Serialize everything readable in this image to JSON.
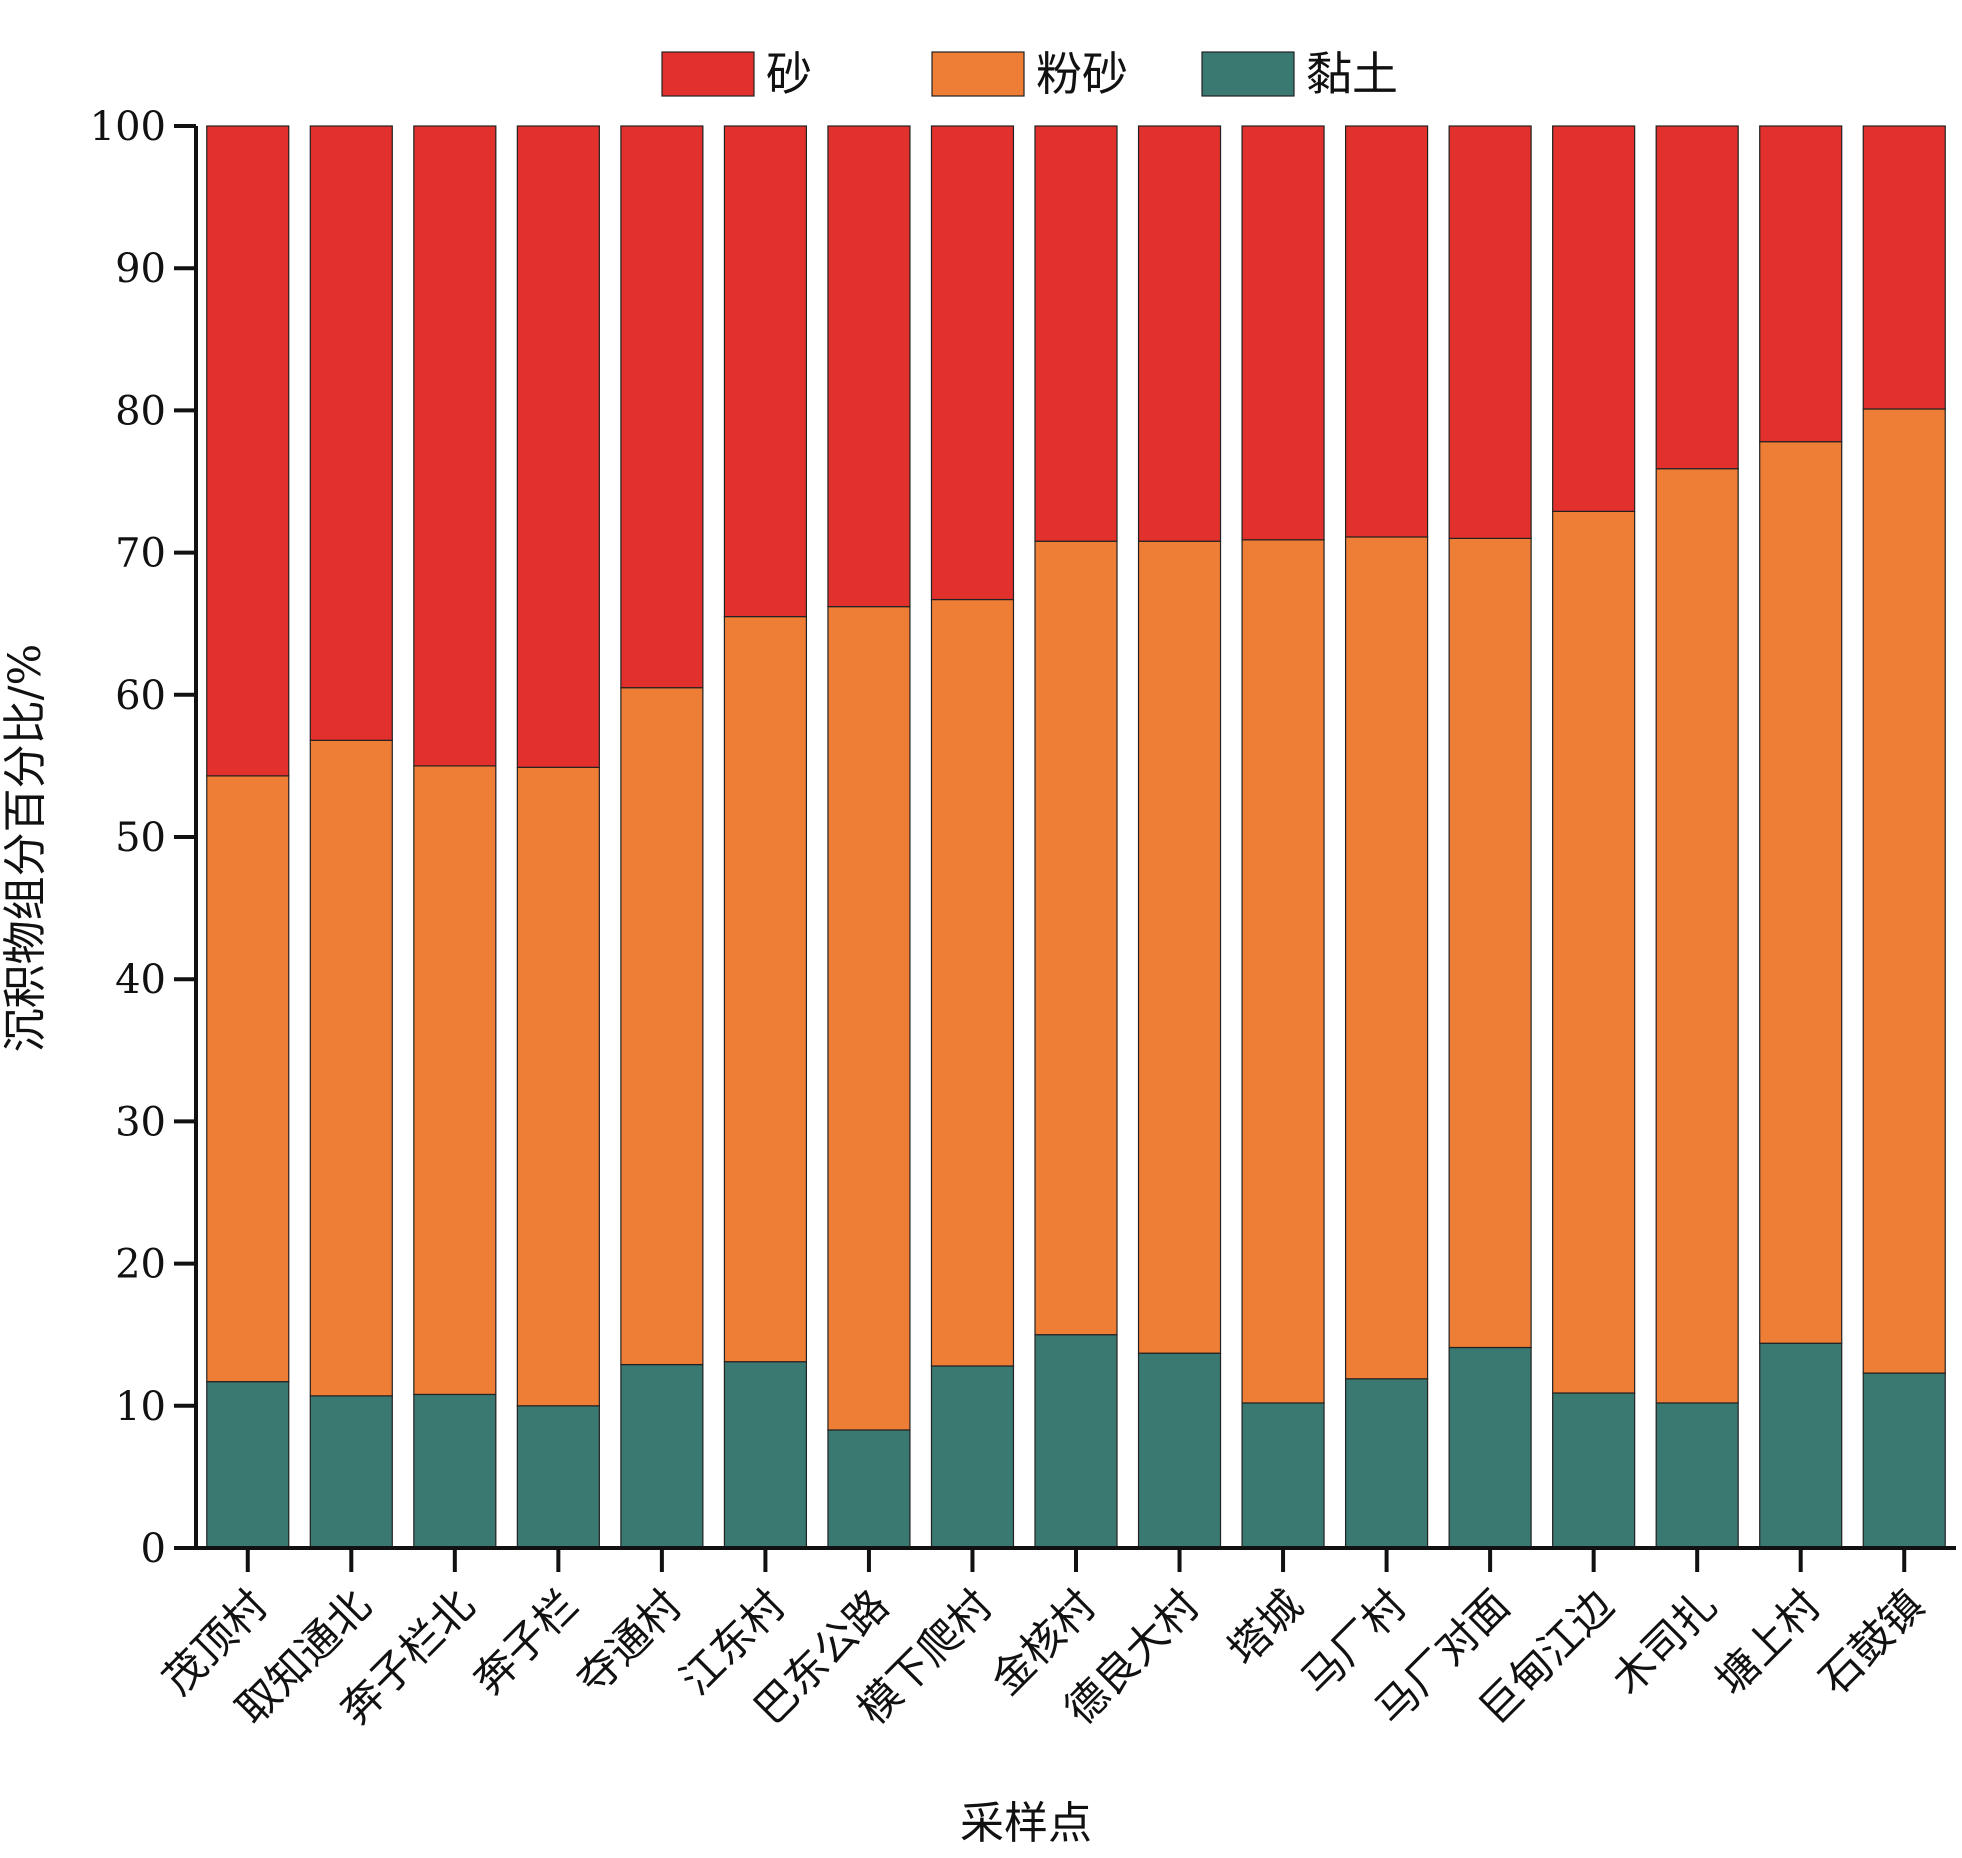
{
  "chart_data": {
    "type": "bar",
    "stacked": true,
    "title": "",
    "xlabel": "采样点",
    "ylabel": "沉积物组分百分比/%",
    "ylim": [
      0,
      100
    ],
    "yticks": [
      0,
      10,
      20,
      30,
      40,
      50,
      60,
      70,
      80,
      90,
      100
    ],
    "grid": false,
    "legend_position": "top-center",
    "categories": [
      "茂顶村",
      "取知通北",
      "奔子栏北",
      "奔子栏",
      "夺通村",
      "江东村",
      "巴东公路",
      "模下爬村",
      "金核村",
      "德良大村",
      "塔城",
      "马厂村",
      "马厂对面",
      "巨甸江边",
      "木司扎",
      "塘上村",
      "石鼓镇"
    ],
    "series": [
      {
        "name": "黏土",
        "color": "#3a7872",
        "values": [
          11.7,
          10.7,
          10.8,
          10.0,
          12.9,
          13.1,
          8.3,
          12.8,
          15.0,
          13.7,
          10.2,
          11.9,
          14.1,
          10.9,
          10.2,
          14.4,
          12.3
        ]
      },
      {
        "name": "粉砂",
        "color": "#ee7d35",
        "values": [
          42.6,
          46.1,
          44.2,
          44.9,
          47.6,
          52.4,
          57.9,
          53.9,
          55.8,
          57.1,
          60.7,
          59.2,
          56.9,
          62.0,
          65.7,
          63.4,
          67.8
        ]
      },
      {
        "name": "砂",
        "color": "#e2312c",
        "values": [
          45.7,
          43.2,
          45.0,
          45.1,
          39.5,
          34.5,
          33.8,
          33.3,
          29.2,
          29.2,
          29.1,
          28.9,
          29.0,
          27.1,
          24.1,
          22.2,
          19.9
        ]
      }
    ],
    "legend": [
      {
        "name": "砂",
        "color": "#e2312c"
      },
      {
        "name": "粉砂",
        "color": "#ee7d35"
      },
      {
        "name": "黏土",
        "color": "#3a7872"
      }
    ]
  }
}
